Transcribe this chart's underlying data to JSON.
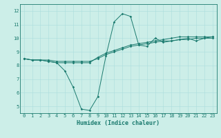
{
  "title": "",
  "xlabel": "Humidex (Indice chaleur)",
  "bg_color": "#cceee8",
  "line_color": "#1a7a6e",
  "grid_color": "#aadddd",
  "xlim": [
    -0.5,
    23.5
  ],
  "ylim": [
    4.5,
    12.5
  ],
  "yticks": [
    5,
    6,
    7,
    8,
    9,
    10,
    11,
    12
  ],
  "xticks": [
    0,
    1,
    2,
    3,
    4,
    5,
    6,
    7,
    8,
    9,
    10,
    11,
    12,
    13,
    14,
    15,
    16,
    17,
    18,
    19,
    20,
    21,
    22,
    23
  ],
  "series1_y": [
    8.5,
    8.4,
    8.4,
    8.3,
    8.2,
    7.6,
    6.4,
    4.8,
    4.7,
    5.7,
    8.7,
    11.2,
    11.8,
    11.6,
    9.5,
    9.4,
    10.0,
    9.7,
    9.8,
    9.9,
    10.0,
    9.8,
    10.0,
    10.1
  ],
  "series2_y": [
    8.5,
    8.4,
    8.4,
    8.3,
    8.2,
    8.2,
    8.2,
    8.2,
    8.2,
    8.6,
    8.9,
    9.1,
    9.3,
    9.5,
    9.6,
    9.7,
    9.8,
    9.9,
    10.0,
    10.1,
    10.1,
    10.1,
    10.1,
    10.1
  ],
  "series3_y": [
    8.5,
    8.4,
    8.4,
    8.4,
    8.3,
    8.3,
    8.3,
    8.3,
    8.3,
    8.5,
    8.8,
    9.0,
    9.2,
    9.4,
    9.5,
    9.6,
    9.7,
    9.8,
    9.8,
    9.9,
    9.9,
    10.0,
    10.0,
    10.0
  ],
  "tick_fontsize": 5.0,
  "xlabel_fontsize": 6.0,
  "marker_size": 1.8,
  "line_width": 0.7
}
